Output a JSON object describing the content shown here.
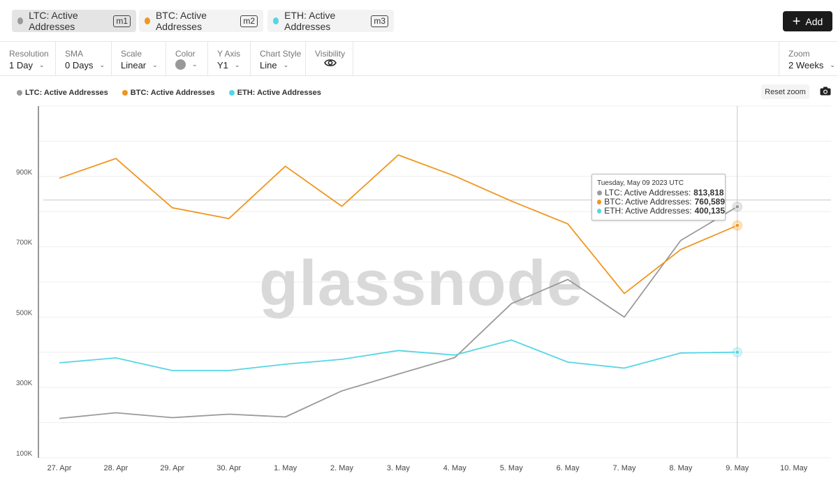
{
  "metrics": [
    {
      "label": "LTC: Active Addresses",
      "tag": "m1",
      "color": "#9a9a9a"
    },
    {
      "label": "BTC: Active Addresses",
      "tag": "m2",
      "color": "#f0961e"
    },
    {
      "label": "ETH: Active Addresses",
      "tag": "m3",
      "color": "#55d6e6"
    }
  ],
  "add_button": "Add",
  "controls": {
    "resolution": {
      "label": "Resolution",
      "value": "1 Day"
    },
    "sma": {
      "label": "SMA",
      "value": "0 Days"
    },
    "scale": {
      "label": "Scale",
      "value": "Linear"
    },
    "color": {
      "label": "Color"
    },
    "y_axis": {
      "label": "Y Axis",
      "value": "Y1"
    },
    "chart_style": {
      "label": "Chart Style",
      "value": "Line"
    },
    "visibility": {
      "label": "Visibility"
    },
    "zoom": {
      "label": "Zoom",
      "value": "2 Weeks"
    }
  },
  "reset_zoom": "Reset zoom",
  "watermark": "glassnode",
  "tooltip": {
    "date": "Tuesday, May 09 2023 UTC",
    "rows": [
      {
        "label": "LTC: Active Addresses:",
        "value": "813,818"
      },
      {
        "label": "BTC: Active Addresses:",
        "value": "760,589"
      },
      {
        "label": "ETH: Active Addresses:",
        "value": "400,135"
      }
    ]
  },
  "chart_data": {
    "type": "line",
    "categories": [
      "27. Apr",
      "28. Apr",
      "29. Apr",
      "30. Apr",
      "1. May",
      "2. May",
      "3. May",
      "4. May",
      "5. May",
      "6. May",
      "7. May",
      "8. May",
      "9. May",
      "10. May"
    ],
    "series": [
      {
        "name": "LTC: Active Addresses",
        "color": "#9a9a9a",
        "values": [
          212000,
          228000,
          214000,
          224000,
          216000,
          290000,
          338000,
          385000,
          538000,
          607000,
          500000,
          718000,
          813818,
          null
        ]
      },
      {
        "name": "BTC: Active Addresses",
        "color": "#f0961e",
        "values": [
          895000,
          951000,
          811000,
          780000,
          929000,
          815000,
          961000,
          901000,
          830000,
          765000,
          567000,
          692000,
          760589,
          null
        ]
      },
      {
        "name": "ETH: Active Addresses",
        "color": "#55d6e6",
        "values": [
          370000,
          384000,
          348000,
          348000,
          366000,
          380000,
          405000,
          392000,
          435000,
          372000,
          355000,
          398000,
          400135,
          null
        ]
      }
    ],
    "y_ticks": [
      "100K",
      "300K",
      "500K",
      "700K",
      "900K"
    ],
    "y_tick_values": [
      100000,
      300000,
      500000,
      700000,
      900000
    ],
    "ylim": [
      100000,
      1100000
    ],
    "crosshair_value": 833000,
    "hover_category": "9. May",
    "legend": "top-left"
  }
}
